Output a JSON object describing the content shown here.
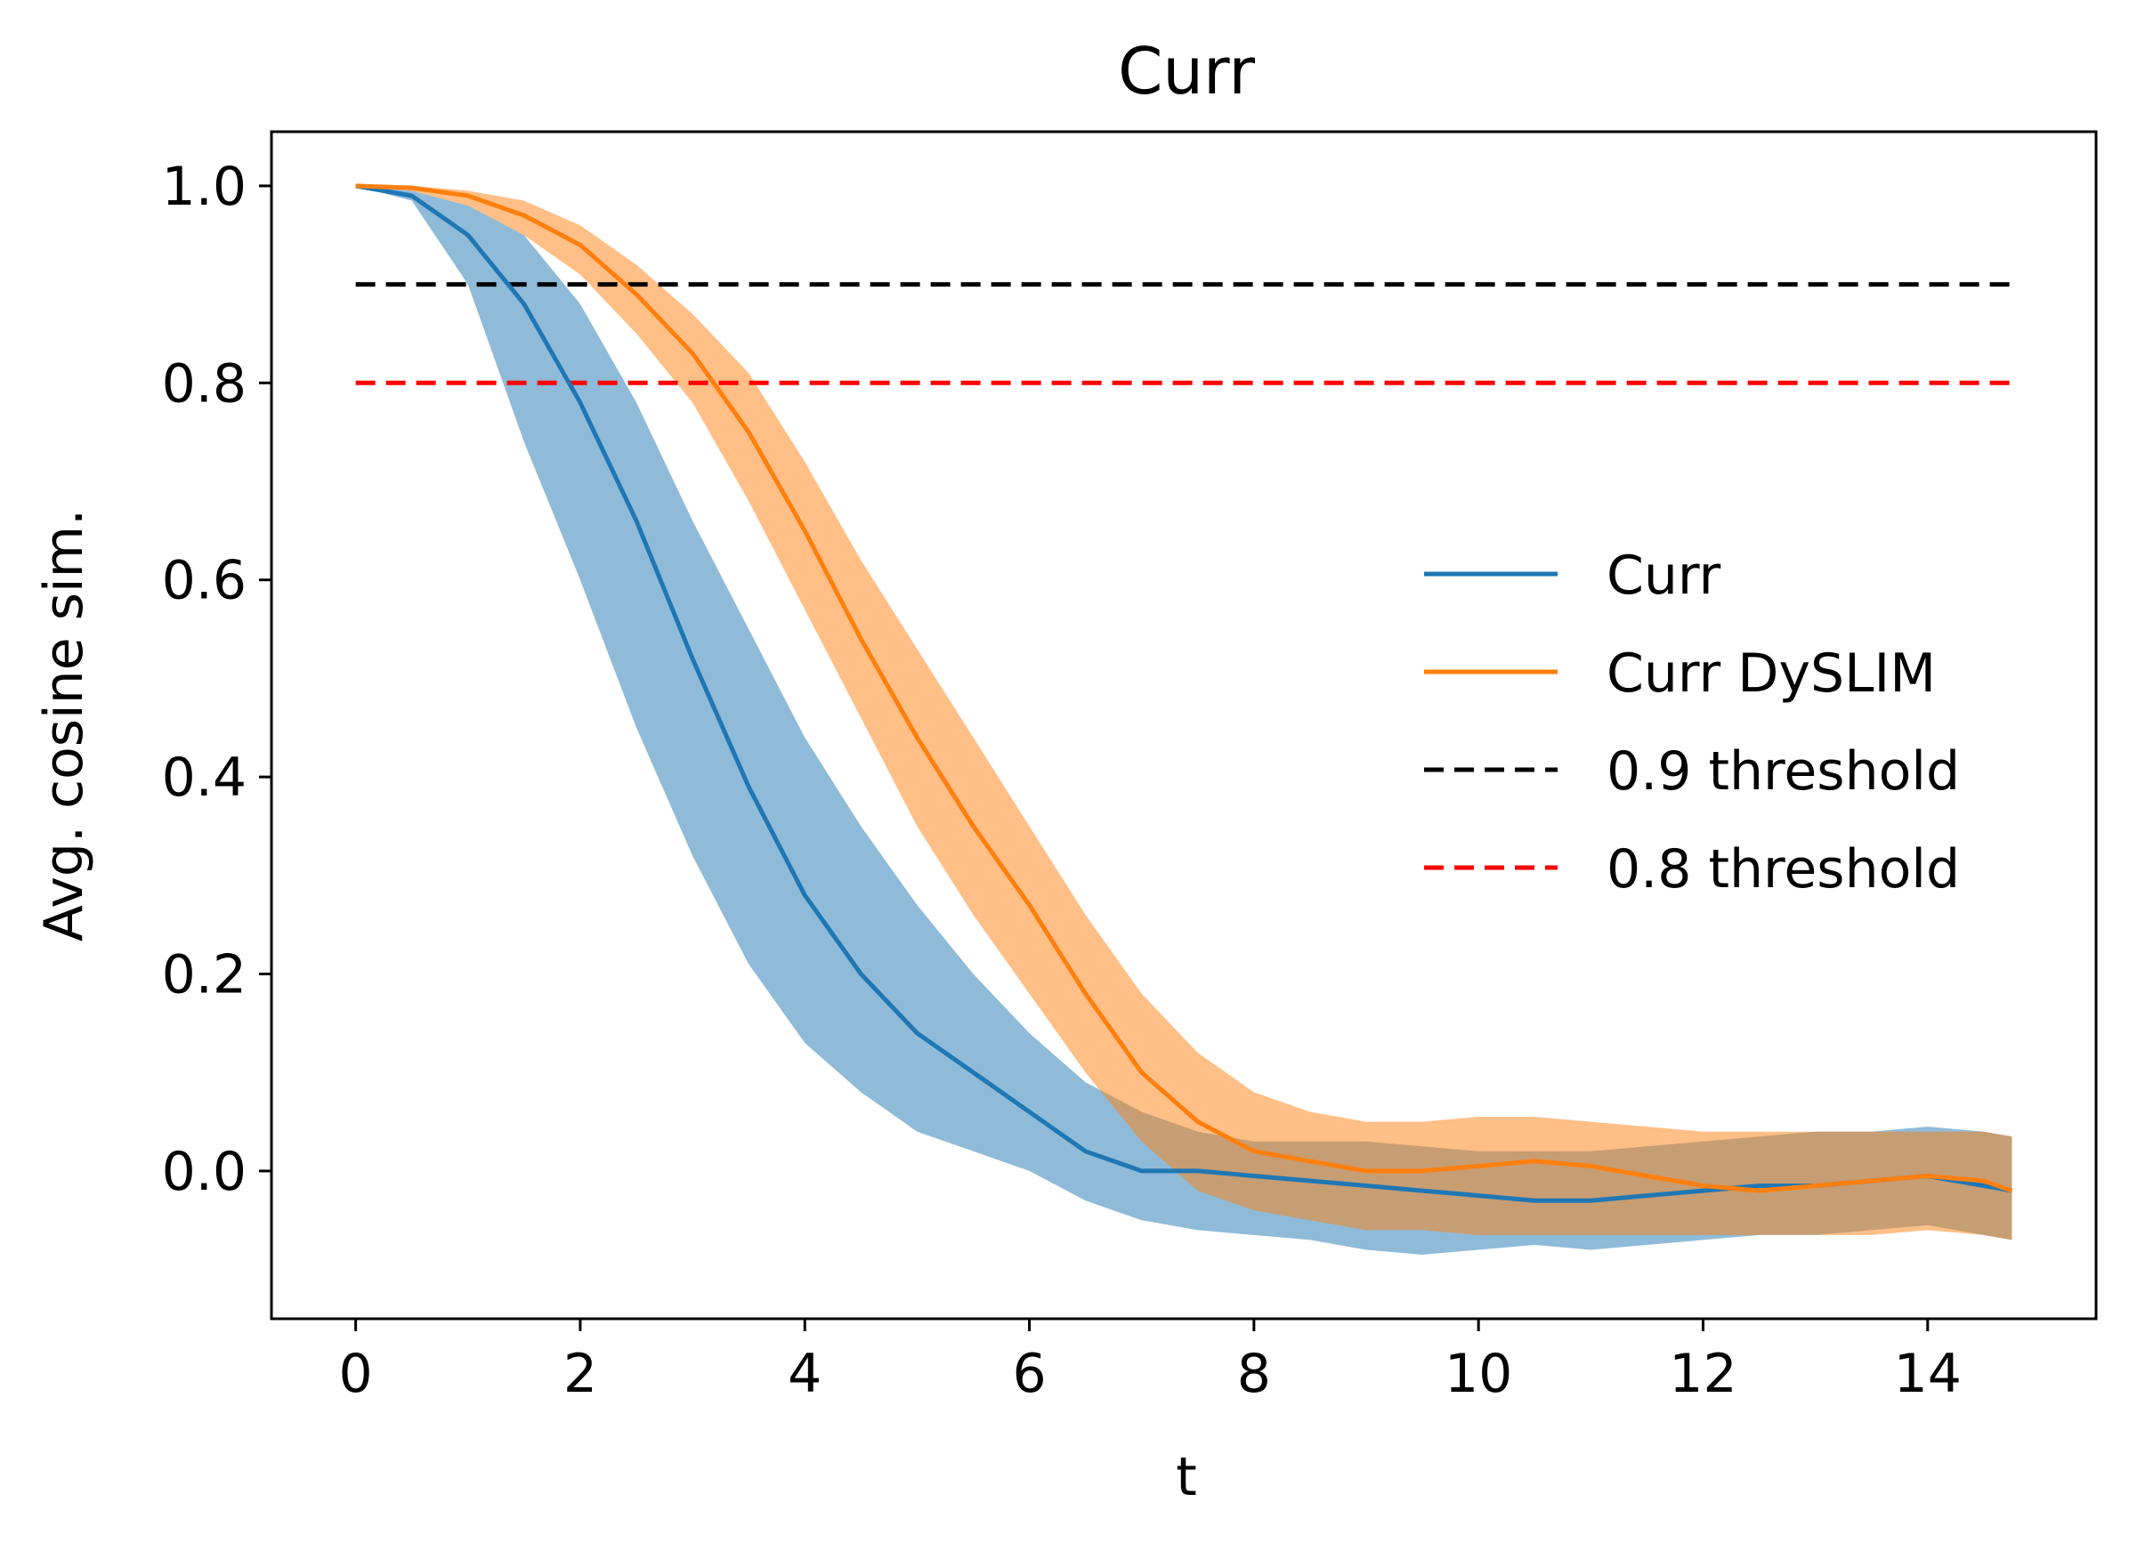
{
  "chart_data": {
    "type": "line",
    "title": "Curr",
    "xlabel": "t",
    "ylabel": "Avg. cosine sim.",
    "xlim": [
      -0.75,
      15.5
    ],
    "ylim": [
      -0.15,
      1.055
    ],
    "xticks": [
      0,
      2,
      4,
      6,
      8,
      10,
      12,
      14
    ],
    "xtick_labels": [
      "0",
      "2",
      "4",
      "6",
      "8",
      "10",
      "12",
      "14"
    ],
    "yticks": [
      0.0,
      0.2,
      0.4,
      0.6,
      0.8,
      1.0
    ],
    "ytick_labels": [
      "0.0",
      "0.2",
      "0.4",
      "0.6",
      "0.8",
      "1.0"
    ],
    "grid": false,
    "legend_position": "center-right",
    "legend": [
      {
        "label": "Curr",
        "color": "#1f77b4",
        "style": "solid"
      },
      {
        "label": "Curr DySLIM",
        "color": "#ff7f0e",
        "style": "solid"
      },
      {
        "label": "0.9 threshold",
        "color": "#000000",
        "style": "dashed"
      },
      {
        "label": "0.8 threshold",
        "color": "#ff0000",
        "style": "dashed"
      }
    ],
    "series": [
      {
        "name": "Curr",
        "color": "#1f77b4",
        "band_color": "#1f77b4",
        "band_opacity": 0.5,
        "x": [
          0,
          0.5,
          1.0,
          1.5,
          2.0,
          2.5,
          3.0,
          3.5,
          4.0,
          4.5,
          5.0,
          5.5,
          6.0,
          6.5,
          7.0,
          7.5,
          8.0,
          8.5,
          9.0,
          9.5,
          10.0,
          10.5,
          11.0,
          11.5,
          12.0,
          12.5,
          13.0,
          13.5,
          14.0,
          14.5,
          14.75
        ],
        "y": [
          1.0,
          0.99,
          0.95,
          0.88,
          0.78,
          0.66,
          0.52,
          0.39,
          0.28,
          0.2,
          0.14,
          0.1,
          0.06,
          0.02,
          0.0,
          0.0,
          -0.005,
          -0.01,
          -0.015,
          -0.02,
          -0.025,
          -0.03,
          -0.03,
          -0.025,
          -0.02,
          -0.015,
          -0.015,
          -0.01,
          -0.005,
          -0.015,
          -0.02
        ],
        "upper": [
          1.0,
          0.995,
          0.98,
          0.95,
          0.88,
          0.78,
          0.66,
          0.55,
          0.44,
          0.35,
          0.27,
          0.2,
          0.14,
          0.09,
          0.06,
          0.04,
          0.03,
          0.03,
          0.03,
          0.025,
          0.02,
          0.02,
          0.02,
          0.025,
          0.03,
          0.035,
          0.04,
          0.04,
          0.045,
          0.04,
          0.035
        ],
        "lower": [
          1.0,
          0.985,
          0.9,
          0.74,
          0.6,
          0.45,
          0.32,
          0.21,
          0.13,
          0.08,
          0.04,
          0.02,
          0.0,
          -0.03,
          -0.05,
          -0.06,
          -0.065,
          -0.07,
          -0.08,
          -0.085,
          -0.08,
          -0.075,
          -0.08,
          -0.075,
          -0.07,
          -0.065,
          -0.065,
          -0.06,
          -0.055,
          -0.065,
          -0.07
        ]
      },
      {
        "name": "Curr DySLIM",
        "color": "#ff7f0e",
        "band_color": "#ff7f0e",
        "band_opacity": 0.5,
        "x": [
          0,
          0.5,
          1.0,
          1.5,
          2.0,
          2.5,
          3.0,
          3.5,
          4.0,
          4.5,
          5.0,
          5.5,
          6.0,
          6.5,
          7.0,
          7.5,
          8.0,
          8.5,
          9.0,
          9.5,
          10.0,
          10.5,
          11.0,
          11.5,
          12.0,
          12.5,
          13.0,
          13.5,
          14.0,
          14.5,
          14.75
        ],
        "y": [
          1.0,
          0.998,
          0.99,
          0.97,
          0.94,
          0.89,
          0.83,
          0.75,
          0.65,
          0.54,
          0.44,
          0.35,
          0.27,
          0.18,
          0.1,
          0.05,
          0.02,
          0.01,
          0.0,
          0.0,
          0.005,
          0.01,
          0.005,
          -0.005,
          -0.015,
          -0.02,
          -0.015,
          -0.01,
          -0.005,
          -0.01,
          -0.02
        ],
        "upper": [
          1.0,
          1.0,
          0.995,
          0.985,
          0.96,
          0.92,
          0.87,
          0.81,
          0.72,
          0.62,
          0.53,
          0.44,
          0.35,
          0.26,
          0.18,
          0.12,
          0.08,
          0.06,
          0.05,
          0.05,
          0.055,
          0.055,
          0.05,
          0.045,
          0.04,
          0.04,
          0.04,
          0.04,
          0.04,
          0.04,
          0.035
        ],
        "lower": [
          1.0,
          0.995,
          0.98,
          0.95,
          0.91,
          0.85,
          0.78,
          0.68,
          0.57,
          0.46,
          0.35,
          0.26,
          0.18,
          0.1,
          0.03,
          -0.02,
          -0.04,
          -0.05,
          -0.06,
          -0.06,
          -0.065,
          -0.065,
          -0.065,
          -0.065,
          -0.065,
          -0.065,
          -0.065,
          -0.065,
          -0.06,
          -0.065,
          -0.07
        ]
      }
    ],
    "thresholds": [
      {
        "name": "0.9 threshold",
        "y": 0.9,
        "x": [
          0,
          14.75
        ],
        "color": "#000000"
      },
      {
        "name": "0.8 threshold",
        "y": 0.8,
        "x": [
          0,
          14.75
        ],
        "color": "#ff0000"
      }
    ]
  }
}
